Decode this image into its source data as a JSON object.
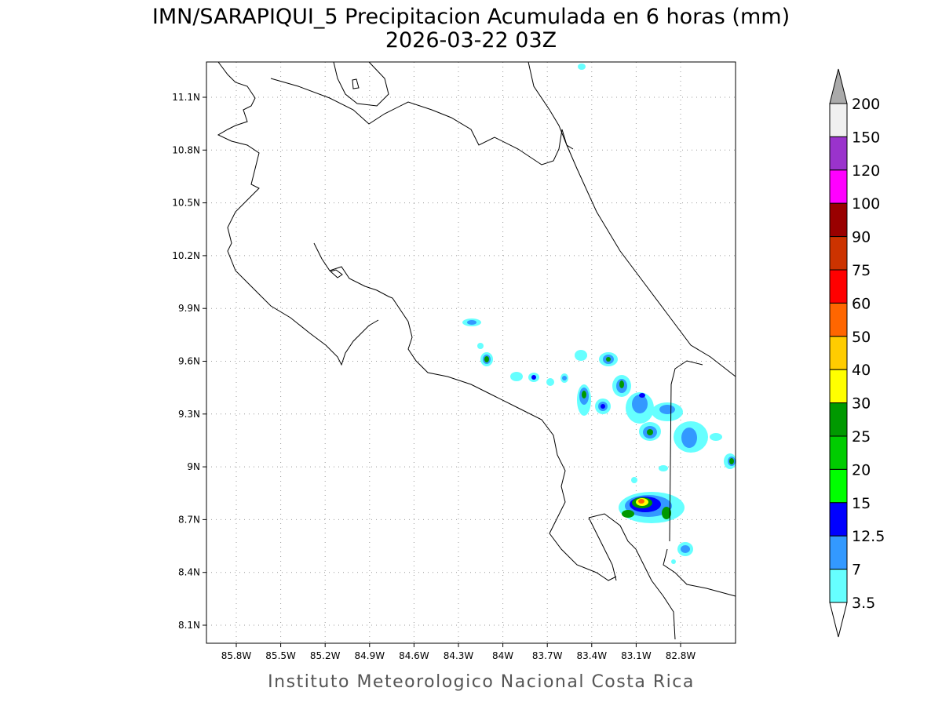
{
  "title": "IMN/SARAPIQUI_5 Precipitacion Acumulada en 6 horas (mm)",
  "subtitle": "2026-03-22 03Z",
  "x_axis": {
    "ticks": [
      "85.8W",
      "85.5W",
      "85.2W",
      "84.9W",
      "84.6W",
      "84.3W",
      "84W",
      "83.7W",
      "83.4W",
      "83.1W",
      "82.8W"
    ]
  },
  "y_axis": {
    "ticks": [
      "11.1N",
      "10.8N",
      "10.5N",
      "10.2N",
      "9.9N",
      "9.6N",
      "9.3N",
      "9N",
      "8.7N",
      "8.4N",
      "8.1N"
    ]
  },
  "colorbar": {
    "levels": [
      200,
      150,
      120,
      100,
      90,
      75,
      60,
      50,
      40,
      30,
      25,
      20,
      15,
      12.5,
      7,
      3.5
    ],
    "colors": [
      "#f0f0f0",
      "#9a33cc",
      "#ff00ff",
      "#990000",
      "#cc3300",
      "#ff0000",
      "#ff6600",
      "#ffcc00",
      "#ffff00",
      "#009900",
      "#00cc00",
      "#00ff00",
      "#0000ff",
      "#3399ff",
      "#66ffff"
    ],
    "over_color": "#aaaaaa",
    "under_color": "#ffffff"
  },
  "footer": "Instituto Meteorologico Nacional Costa Rica"
}
